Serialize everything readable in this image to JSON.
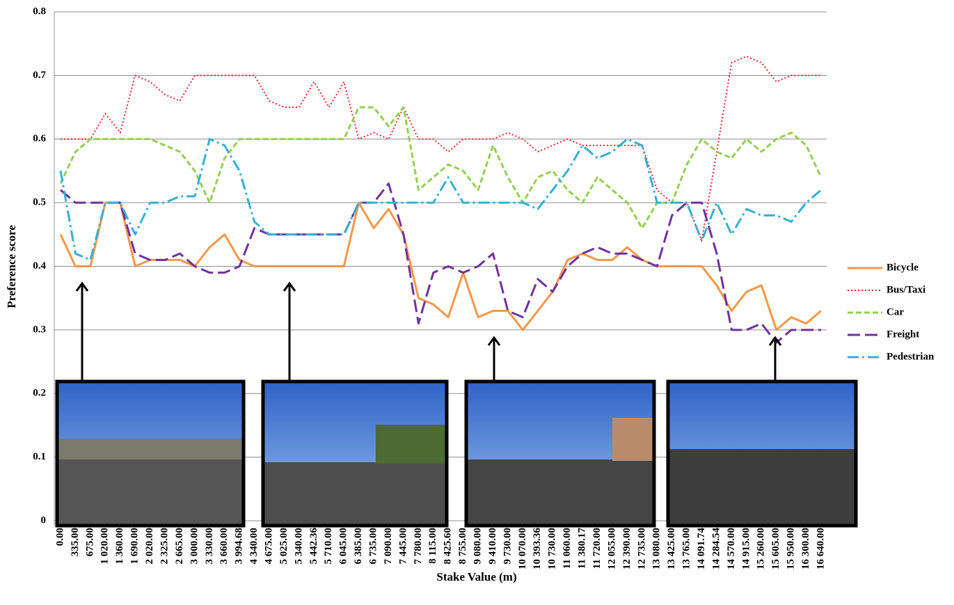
{
  "chart_data": {
    "type": "line",
    "x_label": "Stake Value (m)",
    "y_label": "Preference score",
    "categories": [
      "0.00",
      "335.00",
      "675.00",
      "1 020.00",
      "1 360.00",
      "1 690.00",
      "2 020.00",
      "2 325.00",
      "2 665.00",
      "3 000.00",
      "3 330.00",
      "3 660.00",
      "3 994.68",
      "4 340.00",
      "4 675.00",
      "5 025.00",
      "5 340.00",
      "5 442.36",
      "5 710.00",
      "6 045.00",
      "6 385.00",
      "6 735.00",
      "7 090.00",
      "7 445.00",
      "7 780.00",
      "8 115.00",
      "8 425.60",
      "8 755.00",
      "9 080.00",
      "9 410.00",
      "9 730.00",
      "10 070.00",
      "10 393.36",
      "10 730.00",
      "11 060.00",
      "11 380.17",
      "11 720.00",
      "12 055.00",
      "12 390.00",
      "12 735.00",
      "13 080.00",
      "13 425.00",
      "13 765.00",
      "14 091.74",
      "14 284.54",
      "14 570.00",
      "14 915.00",
      "15 260.00",
      "15 605.00",
      "15 950.00",
      "16 300.00",
      "16 640.00"
    ],
    "series": [
      {
        "name": "Bicycle",
        "color": "#f79646",
        "line_style": "solid",
        "values": [
          0.45,
          0.4,
          0.4,
          0.5,
          0.5,
          0.4,
          0.41,
          0.41,
          0.41,
          0.4,
          0.43,
          0.45,
          0.41,
          0.4,
          0.4,
          0.4,
          0.4,
          0.4,
          0.4,
          0.4,
          0.5,
          0.46,
          0.49,
          0.45,
          0.35,
          0.34,
          0.32,
          0.39,
          0.32,
          0.33,
          0.33,
          0.3,
          0.33,
          0.36,
          0.41,
          0.42,
          0.41,
          0.41,
          0.43,
          0.41,
          0.4,
          0.4,
          0.4,
          0.4,
          0.37,
          0.33,
          0.36,
          0.37,
          0.3,
          0.32,
          0.31,
          0.33
        ]
      },
      {
        "name": "Bus/Taxi",
        "color": "#e8242b",
        "line_style": "dotted",
        "values": [
          0.6,
          0.6,
          0.6,
          0.64,
          0.61,
          0.7,
          0.69,
          0.67,
          0.66,
          0.7,
          0.7,
          0.7,
          0.7,
          0.7,
          0.66,
          0.65,
          0.65,
          0.69,
          0.65,
          0.69,
          0.6,
          0.61,
          0.6,
          0.65,
          0.6,
          0.6,
          0.58,
          0.6,
          0.6,
          0.6,
          0.61,
          0.6,
          0.58,
          0.59,
          0.6,
          0.59,
          0.59,
          0.59,
          0.59,
          0.59,
          0.52,
          0.5,
          0.5,
          0.44,
          0.58,
          0.72,
          0.73,
          0.72,
          0.69,
          0.7,
          0.7,
          0.7
        ]
      },
      {
        "name": "Car",
        "color": "#92d050",
        "line_style": "dashed",
        "values": [
          0.53,
          0.58,
          0.6,
          0.6,
          0.6,
          0.6,
          0.6,
          0.59,
          0.58,
          0.55,
          0.5,
          0.57,
          0.6,
          0.6,
          0.6,
          0.6,
          0.6,
          0.6,
          0.6,
          0.6,
          0.65,
          0.65,
          0.62,
          0.65,
          0.52,
          0.54,
          0.56,
          0.55,
          0.52,
          0.59,
          0.54,
          0.5,
          0.54,
          0.55,
          0.52,
          0.5,
          0.54,
          0.52,
          0.5,
          0.46,
          0.5,
          0.5,
          0.56,
          0.6,
          0.58,
          0.57,
          0.6,
          0.58,
          0.6,
          0.61,
          0.59,
          0.54
        ]
      },
      {
        "name": "Freight",
        "color": "#7030a0",
        "line_style": "long-dash",
        "values": [
          0.52,
          0.5,
          0.5,
          0.5,
          0.5,
          0.42,
          0.41,
          0.41,
          0.42,
          0.4,
          0.39,
          0.39,
          0.4,
          0.46,
          0.45,
          0.45,
          0.45,
          0.45,
          0.45,
          0.45,
          0.5,
          0.5,
          0.53,
          0.45,
          0.31,
          0.39,
          0.4,
          0.39,
          0.4,
          0.42,
          0.33,
          0.32,
          0.38,
          0.36,
          0.4,
          0.42,
          0.43,
          0.42,
          0.42,
          0.41,
          0.4,
          0.48,
          0.5,
          0.5,
          0.42,
          0.3,
          0.3,
          0.31,
          0.28,
          0.3,
          0.3,
          0.3
        ]
      },
      {
        "name": "Pedestrian",
        "color": "#31b0d5",
        "line_style": "dash-dot",
        "values": [
          0.55,
          0.42,
          0.41,
          0.5,
          0.5,
          0.45,
          0.5,
          0.5,
          0.51,
          0.51,
          0.6,
          0.59,
          0.55,
          0.47,
          0.45,
          0.45,
          0.45,
          0.45,
          0.45,
          0.45,
          0.5,
          0.5,
          0.5,
          0.5,
          0.5,
          0.5,
          0.54,
          0.5,
          0.5,
          0.5,
          0.5,
          0.5,
          0.49,
          0.52,
          0.55,
          0.59,
          0.57,
          0.58,
          0.6,
          0.59,
          0.5,
          0.5,
          0.5,
          0.44,
          0.5,
          0.45,
          0.49,
          0.48,
          0.48,
          0.47,
          0.5,
          0.52
        ]
      }
    ],
    "ylim": [
      0,
      0.8
    ],
    "yticks": [
      0,
      0.1,
      0.2,
      0.3,
      0.4,
      0.5,
      0.6,
      0.7,
      0.8
    ],
    "grid": true,
    "legend": "right"
  }
}
